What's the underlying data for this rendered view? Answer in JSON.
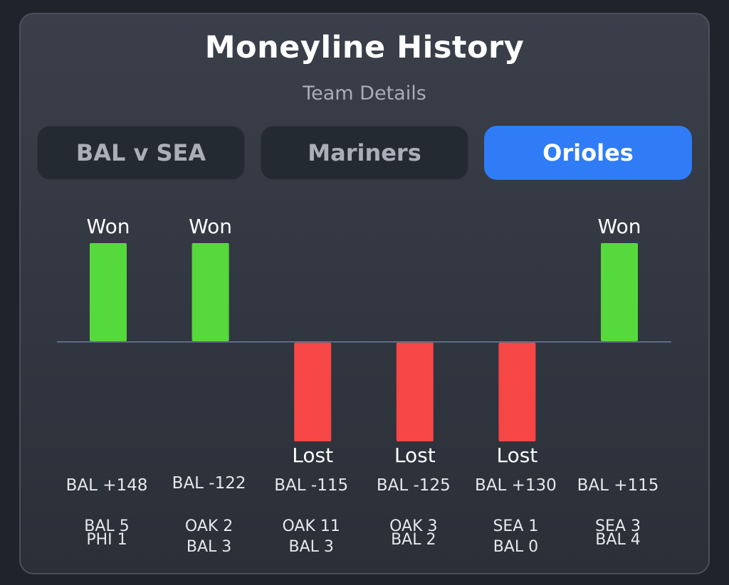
{
  "header": {
    "title": "Moneyline History",
    "subtitle": "Team Details"
  },
  "tabs": [
    {
      "label": "BAL v SEA",
      "active": false
    },
    {
      "label": "Mariners",
      "active": false
    },
    {
      "label": "Orioles",
      "active": true
    }
  ],
  "colors": {
    "won": "#56d93d",
    "lost": "#f74646",
    "active_tab": "#2f7cf6",
    "baseline": "#5d6c84"
  },
  "chart_data": {
    "type": "bar",
    "categories": [
      "BAL +148",
      "BAL -122",
      "BAL -115",
      "BAL -125",
      "BAL +130",
      "BAL +115"
    ],
    "values": [
      1,
      1,
      -1,
      -1,
      -1,
      1
    ],
    "results": [
      "Won",
      "Won",
      "Lost",
      "Lost",
      "Lost",
      "Won"
    ],
    "scores": [
      [
        "BAL 5",
        "PHI 1"
      ],
      [
        "OAK 2",
        "BAL 3"
      ],
      [
        "OAK 11",
        "BAL 3"
      ],
      [
        "OAK 3",
        "BAL 2"
      ],
      [
        "SEA 1",
        "BAL 0"
      ],
      [
        "SEA 3",
        "BAL 4"
      ]
    ],
    "ylim": [
      -1,
      1
    ],
    "grid": false,
    "legend": "none"
  }
}
